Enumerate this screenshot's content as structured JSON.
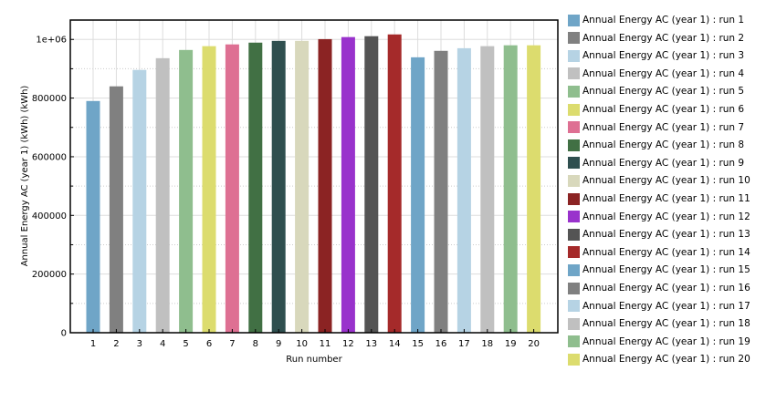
{
  "chart_data": {
    "type": "bar",
    "xlabel": "Run number",
    "ylabel": "Annual Energy AC (year 1) (kWh) (kWh)",
    "ylim": [
      0,
      1066000
    ],
    "yticks": [
      0,
      200000,
      400000,
      600000,
      800000,
      1000000
    ],
    "ytick_labels": [
      "0",
      "200000",
      "400000",
      "600000",
      "800000",
      "1e+06"
    ],
    "grid": true,
    "legend_placement": "right",
    "categories": [
      "1",
      "2",
      "3",
      "4",
      "5",
      "6",
      "7",
      "8",
      "9",
      "10",
      "11",
      "12",
      "13",
      "14",
      "15",
      "16",
      "17",
      "18",
      "19",
      "20"
    ],
    "series": [
      {
        "name": "Annual Energy AC (year 1) : run 1",
        "value": 790000,
        "color": "#6fa5c7"
      },
      {
        "name": "Annual Energy AC (year 1) : run 2",
        "value": 840000,
        "color": "#808080"
      },
      {
        "name": "Annual Energy AC (year 1) : run 3",
        "value": 896000,
        "color": "#b6d3e4"
      },
      {
        "name": "Annual Energy AC (year 1) : run 4",
        "value": 936000,
        "color": "#c0c0c0"
      },
      {
        "name": "Annual Energy AC (year 1) : run 5",
        "value": 964000,
        "color": "#8fbe8e"
      },
      {
        "name": "Annual Energy AC (year 1) : run 6",
        "value": 977000,
        "color": "#dcdc6e"
      },
      {
        "name": "Annual Energy AC (year 1) : run 7",
        "value": 983000,
        "color": "#de7093"
      },
      {
        "name": "Annual Energy AC (year 1) : run 8",
        "value": 989000,
        "color": "#417044"
      },
      {
        "name": "Annual Energy AC (year 1) : run 9",
        "value": 995000,
        "color": "#2f4f4f"
      },
      {
        "name": "Annual Energy AC (year 1) : run 10",
        "value": 995000,
        "color": "#d8d8bc"
      },
      {
        "name": "Annual Energy AC (year 1) : run 11",
        "value": 1001000,
        "color": "#8b2323"
      },
      {
        "name": "Annual Energy AC (year 1) : run 12",
        "value": 1008000,
        "color": "#9932cc"
      },
      {
        "name": "Annual Energy AC (year 1) : run 13",
        "value": 1011000,
        "color": "#545454"
      },
      {
        "name": "Annual Energy AC (year 1) : run 14",
        "value": 1017000,
        "color": "#a52a2a"
      },
      {
        "name": "Annual Energy AC (year 1) : run 15",
        "value": 939000,
        "color": "#6fa5c7"
      },
      {
        "name": "Annual Energy AC (year 1) : run 16",
        "value": 961000,
        "color": "#808080"
      },
      {
        "name": "Annual Energy AC (year 1) : run 17",
        "value": 970000,
        "color": "#b6d3e4"
      },
      {
        "name": "Annual Energy AC (year 1) : run 18",
        "value": 977000,
        "color": "#c0c0c0"
      },
      {
        "name": "Annual Energy AC (year 1) : run 19",
        "value": 980000,
        "color": "#8fbe8e"
      },
      {
        "name": "Annual Energy AC (year 1) : run 20",
        "value": 980000,
        "color": "#dcdc6e"
      }
    ]
  }
}
